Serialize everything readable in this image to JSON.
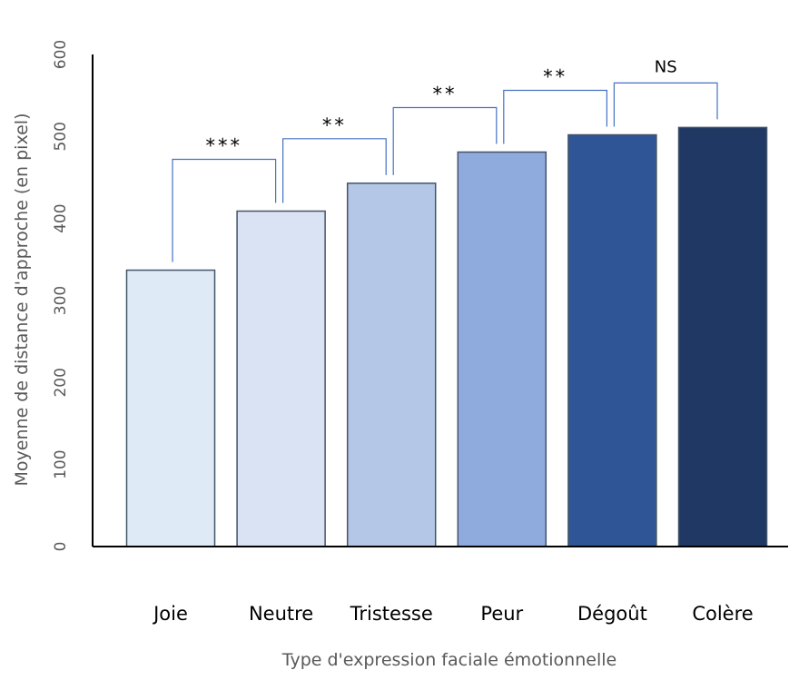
{
  "chart_data": {
    "type": "bar",
    "title": "",
    "xlabel": "Type d'expression faciale émotionnelle",
    "ylabel": "Moyenne de distance d'approche (en pixel)",
    "ylim": [
      0,
      600
    ],
    "yticks": [
      "0",
      "100",
      "200",
      "300",
      "400",
      "500",
      "600"
    ],
    "categories": [
      "Joie",
      "Neutre",
      "Tristesse",
      "Peur",
      "Dégoût",
      "Colère"
    ],
    "values": [
      337,
      409,
      443,
      481,
      502,
      511
    ],
    "colors": [
      "#DEEBF7",
      "#DAE3F3",
      "#B4C7E7",
      "#8FAADC",
      "#2F5597",
      "#203864"
    ],
    "significance": [
      {
        "from": "Joie",
        "to": "Neutre",
        "label": "***"
      },
      {
        "from": "Neutre",
        "to": "Tristesse",
        "label": "**"
      },
      {
        "from": "Tristesse",
        "to": "Peur",
        "label": "**"
      },
      {
        "from": "Peur",
        "to": "Dégoût",
        "label": "**"
      },
      {
        "from": "Dégoût",
        "to": "Colère",
        "label": "NS"
      }
    ],
    "bracket_color": "#4472C4",
    "grid": false
  }
}
